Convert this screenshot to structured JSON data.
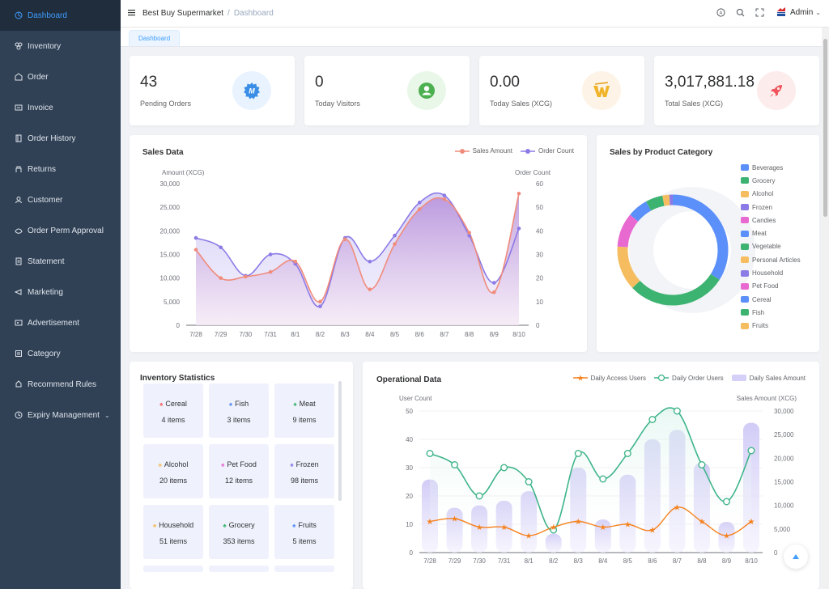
{
  "sidebar": {
    "items": [
      {
        "label": "Dashboard",
        "icon": "dashboard-icon",
        "active": true
      },
      {
        "label": "Inventory",
        "icon": "inventory-icon"
      },
      {
        "label": "Order",
        "icon": "order-icon"
      },
      {
        "label": "Invoice",
        "icon": "invoice-icon"
      },
      {
        "label": "Order History",
        "icon": "history-icon"
      },
      {
        "label": "Returns",
        "icon": "returns-icon"
      },
      {
        "label": "Customer",
        "icon": "customer-icon"
      },
      {
        "label": "Order Perm Approval",
        "icon": "approval-icon"
      },
      {
        "label": "Statement",
        "icon": "statement-icon"
      },
      {
        "label": "Marketing",
        "icon": "marketing-icon"
      },
      {
        "label": "Advertisement",
        "icon": "advertisement-icon"
      },
      {
        "label": "Category",
        "icon": "category-icon"
      },
      {
        "label": "Recommend Rules",
        "icon": "rules-icon"
      },
      {
        "label": "Expiry Management",
        "icon": "expiry-icon",
        "has_submenu": true
      }
    ]
  },
  "header": {
    "store": "Best Buy Supermarket",
    "separator": "/",
    "page": "Dashboard",
    "user": "Admin"
  },
  "tags": {
    "active": "Dashboard"
  },
  "stats": [
    {
      "value": "43",
      "label": "Pending Orders",
      "icon": "pending-orders-icon",
      "badge_bg": "#e8f3ff",
      "color": "#3a8ee6"
    },
    {
      "value": "0",
      "label": "Today Visitors",
      "icon": "visitor-icon",
      "badge_bg": "#e9f7e9",
      "color": "#4cb050"
    },
    {
      "value": "0.00",
      "label": "Today Sales (XCG)",
      "icon": "sales-icon",
      "badge_bg": "#fdf3e6",
      "color": "#f0b429"
    },
    {
      "value": "3,017,881.18",
      "label": "Total Sales (XCG)",
      "icon": "rocket-icon",
      "badge_bg": "#fdecec",
      "color": "#f2545b"
    }
  ],
  "sales_card": {
    "title": "Sales Data",
    "legend": [
      "Sales Amount",
      "Order Count"
    ]
  },
  "category_card": {
    "title": "Sales by Product Category"
  },
  "inventory": {
    "title": "Inventory Statistics",
    "items": [
      {
        "name": "Cereal",
        "count": "4 items",
        "leaf_color": "#f56c6c"
      },
      {
        "name": "Fish",
        "count": "3 items",
        "leaf_color": "#5b8ff9"
      },
      {
        "name": "Meat",
        "count": "9 items",
        "leaf_color": "#3cb371"
      },
      {
        "name": "Alcohol",
        "count": "20 items",
        "leaf_color": "#f6bd60"
      },
      {
        "name": "Pet Food",
        "count": "12 items",
        "leaf_color": "#e86ad0"
      },
      {
        "name": "Frozen",
        "count": "98 items",
        "leaf_color": "#8c7ae6"
      },
      {
        "name": "Household",
        "count": "51 items",
        "leaf_color": "#f6bd60"
      },
      {
        "name": "Grocery",
        "count": "353 items",
        "leaf_color": "#3cb371"
      },
      {
        "name": "Fruits",
        "count": "5 items",
        "leaf_color": "#5b8ff9"
      }
    ]
  },
  "operational_card": {
    "title": "Operational Data",
    "legend": [
      "Daily Access Users",
      "Daily Order Users",
      "Daily Sales Amount"
    ]
  },
  "chart_data": [
    {
      "type": "line",
      "title": "Sales Data",
      "x": [
        "7/28",
        "7/29",
        "7/30",
        "7/31",
        "8/1",
        "8/2",
        "8/3",
        "8/4",
        "8/5",
        "8/6",
        "8/7",
        "8/8",
        "8/9",
        "8/10"
      ],
      "ylabel_left": "Amount (XCG)",
      "ylabel_right": "Order Count",
      "ylim_left": [
        0,
        30000
      ],
      "ylim_right": [
        0,
        60
      ],
      "yticks_left": [
        "0",
        "5,000",
        "10,000",
        "15,000",
        "20,000",
        "25,000",
        "30,000"
      ],
      "yticks_right": [
        "0",
        "10",
        "20",
        "30",
        "40",
        "50",
        "60"
      ],
      "series": [
        {
          "name": "Sales Amount",
          "axis": "left",
          "color": "#f08c7c",
          "values": [
            16000,
            10000,
            10300,
            11300,
            13500,
            5000,
            18200,
            7600,
            17200,
            24600,
            26700,
            19600,
            7000,
            27900
          ]
        },
        {
          "name": "Order Count",
          "axis": "right",
          "color": "#8c7ae6",
          "values": [
            37,
            33,
            21,
            30,
            26,
            8,
            37,
            27,
            38,
            52,
            55,
            38,
            18,
            41
          ]
        }
      ],
      "legend": "top-right",
      "smooth": true
    },
    {
      "type": "pie",
      "title": "Sales by Product Category",
      "donut": true,
      "legend": "right",
      "slices": [
        {
          "name": "Beverages",
          "color": "#5b8ff9",
          "value": 34
        },
        {
          "name": "Grocery",
          "color": "#3cb371",
          "value": 29
        },
        {
          "name": "Alcohol",
          "color": "#f6bd60",
          "value": 13
        },
        {
          "name": "Frozen",
          "color": "#8c7ae6",
          "value": 0
        },
        {
          "name": "Candies",
          "color": "#e86ad0",
          "value": 10
        },
        {
          "name": "Meat",
          "color": "#5b8ff9",
          "value": 6
        },
        {
          "name": "Vegetable",
          "color": "#3cb371",
          "value": 5
        },
        {
          "name": "Personal Articles",
          "color": "#f6bd60",
          "value": 2
        },
        {
          "name": "Household",
          "color": "#8c7ae6",
          "value": 1
        },
        {
          "name": "Pet Food",
          "color": "#e86ad0",
          "value": 0
        },
        {
          "name": "Cereal",
          "color": "#5b8ff9",
          "value": 0
        },
        {
          "name": "Fish",
          "color": "#3cb371",
          "value": 0
        },
        {
          "name": "Fruits",
          "color": "#f6bd60",
          "value": 0
        }
      ]
    },
    {
      "type": "bar",
      "title": "Operational Data",
      "x": [
        "7/28",
        "7/29",
        "7/30",
        "7/31",
        "8/1",
        "8/2",
        "8/3",
        "8/4",
        "8/5",
        "8/6",
        "8/7",
        "8/8",
        "8/9",
        "8/10"
      ],
      "ylabel_left": "User Count",
      "ylabel_right": "Sales Amount (XCG)",
      "ylim_left": [
        0,
        50
      ],
      "ylim_right": [
        0,
        30000
      ],
      "yticks_left": [
        "0",
        "10",
        "20",
        "30",
        "40",
        "50"
      ],
      "yticks_right": [
        "0",
        "5,000",
        "10,000",
        "15,000",
        "20,000",
        "25,000",
        "30,000"
      ],
      "series": [
        {
          "name": "Daily Access Users",
          "type": "line",
          "axis": "left",
          "color": "#f5821f",
          "values": [
            11,
            12,
            9,
            9,
            6,
            9,
            11,
            9,
            10,
            8,
            16,
            11,
            6,
            11
          ]
        },
        {
          "name": "Daily Order Users",
          "type": "line",
          "axis": "left",
          "color": "#3eb489",
          "values": [
            35,
            31,
            20,
            30,
            25,
            8,
            35,
            26,
            35,
            47,
            50,
            31,
            18,
            36
          ]
        },
        {
          "name": "Daily Sales Amount",
          "type": "bar",
          "axis": "right",
          "color": "#d4d0f7",
          "values": [
            15500,
            9500,
            10000,
            11000,
            13000,
            4000,
            18000,
            7000,
            16500,
            24000,
            26000,
            19000,
            6500,
            27500
          ]
        }
      ],
      "legend": "top-right"
    }
  ]
}
